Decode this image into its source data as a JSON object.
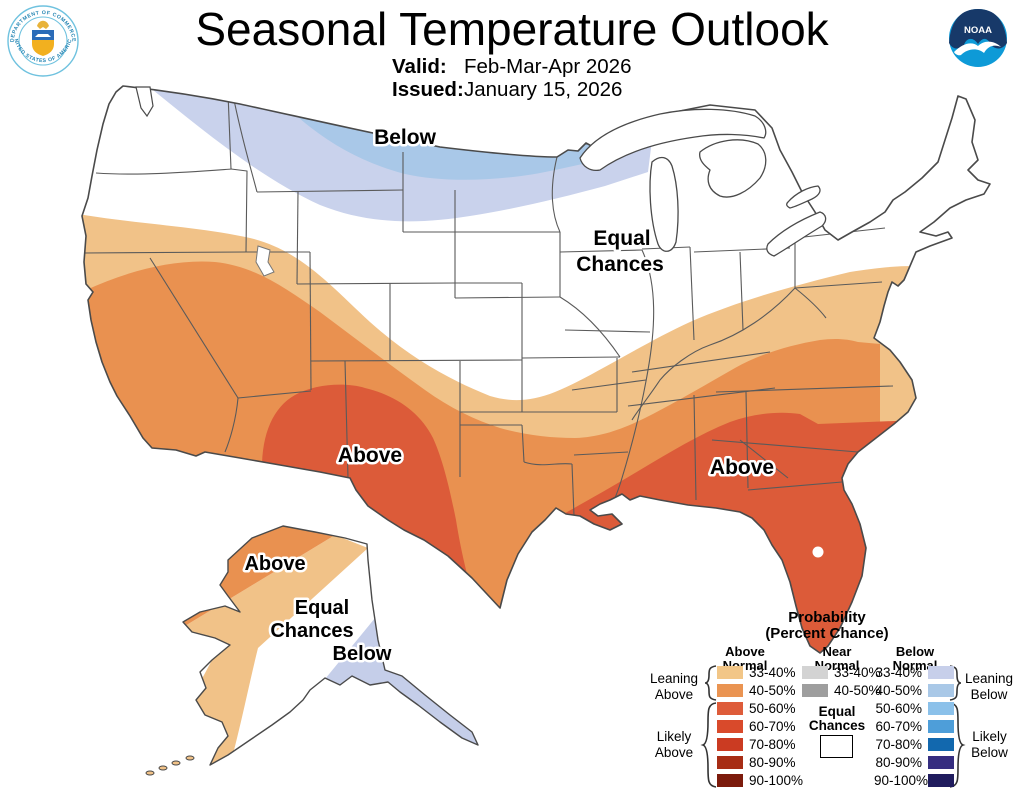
{
  "header": {
    "title": "Seasonal Temperature Outlook",
    "valid_label": "Valid:",
    "valid_value": "Feb-Mar-Apr 2026",
    "issued_label": "Issued:",
    "issued_value": "January 15, 2026"
  },
  "logos": {
    "noaa_text": "NOAA",
    "doc_ring_top": "DEPARTMENT OF COMMERCE",
    "doc_ring_bottom": "UNITED STATES OF AMERICA"
  },
  "map_labels": {
    "below_north": "Below",
    "equal_line1": "Equal",
    "equal_line2": "Chances",
    "above_southwest": "Above",
    "above_southeast": "Above",
    "alaska_above": "Above",
    "alaska_equal_line1": "Equal",
    "alaska_equal_line2": "Chances",
    "alaska_below": "Below"
  },
  "map_colors": {
    "tan": "#F1C288",
    "orange": "#E99150",
    "red": "#DC5B39",
    "blue_outer": "#C9D2EC",
    "blue_inner": "#A9C8E8",
    "alaska_blue": "#C5CEE9",
    "outline": "#4a4a4a",
    "state_line": "#5a5a5a"
  },
  "legend": {
    "title_line1": "Probability",
    "title_line2": "(Percent Chance)",
    "above": {
      "header_line1": "Above",
      "header_line2": "Normal",
      "rows": [
        {
          "label": "33-40%",
          "color": "#F2C687"
        },
        {
          "label": "40-50%",
          "color": "#EA9452"
        },
        {
          "label": "50-60%",
          "color": "#DE5C3A"
        },
        {
          "label": "60-70%",
          "color": "#D94A2B"
        },
        {
          "label": "70-80%",
          "color": "#CB3B22"
        },
        {
          "label": "80-90%",
          "color": "#A72D15"
        },
        {
          "label": "90-100%",
          "color": "#7C1B0C"
        }
      ]
    },
    "near": {
      "header_line1": "Near",
      "header_line2": "Normal",
      "rows": [
        {
          "label": "33-40%",
          "color": "#D3D3D3"
        },
        {
          "label": "40-50%",
          "color": "#9E9E9E"
        }
      ],
      "equal_line1": "Equal",
      "equal_line2": "Chances"
    },
    "below": {
      "header_line1": "Below",
      "header_line2": "Normal",
      "rows": [
        {
          "label": "33-40%",
          "color": "#C7CFEA"
        },
        {
          "label": "40-50%",
          "color": "#A9C8E7"
        },
        {
          "label": "50-60%",
          "color": "#8BC1EA"
        },
        {
          "label": "60-70%",
          "color": "#4E9ED9"
        },
        {
          "label": "70-80%",
          "color": "#1268AE"
        },
        {
          "label": "80-90%",
          "color": "#352D80"
        },
        {
          "label": "90-100%",
          "color": "#201C5E"
        }
      ]
    },
    "brackets": {
      "leaning_above_line1": "Leaning",
      "leaning_above_line2": "Above",
      "likely_above_line1": "Likely",
      "likely_above_line2": "Above",
      "leaning_below_line1": "Leaning",
      "leaning_below_line2": "Below",
      "likely_below_line1": "Likely",
      "likely_below_line2": "Below"
    }
  }
}
